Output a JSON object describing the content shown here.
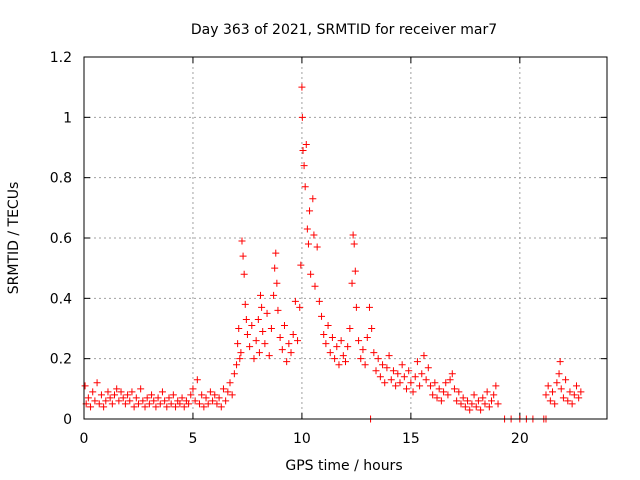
{
  "chart_data": {
    "type": "scatter",
    "title": "Day 363 of 2021, SRMTID for receiver mar7",
    "xlabel": "GPS time / hours",
    "ylabel": "SRMTID / TECUs",
    "xlim": [
      0,
      24
    ],
    "ylim": [
      0,
      1.2
    ],
    "xticks": [
      0,
      5,
      10,
      15,
      20
    ],
    "xtick_labels": [
      "0",
      "5",
      "10",
      "15",
      "20"
    ],
    "yticks": [
      0,
      0.2,
      0.4,
      0.6,
      0.8,
      1.0,
      1.2
    ],
    "ytick_labels": [
      "0",
      "0.2",
      "0.4",
      "0.6",
      "0.8",
      "1",
      "1.2"
    ],
    "grid": true,
    "marker": "+",
    "series": [
      {
        "name": "SRMTID",
        "color": "#ff0000",
        "points": [
          [
            0.05,
            0.11
          ],
          [
            0.1,
            0.05
          ],
          [
            0.2,
            0.07
          ],
          [
            0.3,
            0.04
          ],
          [
            0.4,
            0.09
          ],
          [
            0.5,
            0.06
          ],
          [
            0.6,
            0.12
          ],
          [
            0.7,
            0.05
          ],
          [
            0.8,
            0.08
          ],
          [
            0.9,
            0.04
          ],
          [
            1.0,
            0.06
          ],
          [
            1.1,
            0.09
          ],
          [
            1.2,
            0.07
          ],
          [
            1.3,
            0.05
          ],
          [
            1.4,
            0.08
          ],
          [
            1.5,
            0.1
          ],
          [
            1.6,
            0.06
          ],
          [
            1.7,
            0.09
          ],
          [
            1.8,
            0.07
          ],
          [
            1.9,
            0.05
          ],
          [
            2.0,
            0.08
          ],
          [
            2.1,
            0.06
          ],
          [
            2.2,
            0.09
          ],
          [
            2.3,
            0.04
          ],
          [
            2.4,
            0.07
          ],
          [
            2.5,
            0.05
          ],
          [
            2.6,
            0.1
          ],
          [
            2.7,
            0.06
          ],
          [
            2.8,
            0.04
          ],
          [
            2.9,
            0.07
          ],
          [
            3.0,
            0.05
          ],
          [
            3.1,
            0.08
          ],
          [
            3.2,
            0.06
          ],
          [
            3.3,
            0.04
          ],
          [
            3.4,
            0.07
          ],
          [
            3.5,
            0.05
          ],
          [
            3.6,
            0.09
          ],
          [
            3.7,
            0.06
          ],
          [
            3.8,
            0.04
          ],
          [
            3.9,
            0.07
          ],
          [
            4.0,
            0.05
          ],
          [
            4.1,
            0.08
          ],
          [
            4.2,
            0.04
          ],
          [
            4.3,
            0.06
          ],
          [
            4.4,
            0.05
          ],
          [
            4.5,
            0.07
          ],
          [
            4.6,
            0.04
          ],
          [
            4.7,
            0.06
          ],
          [
            4.8,
            0.05
          ],
          [
            4.9,
            0.08
          ],
          [
            5.0,
            0.1
          ],
          [
            5.1,
            0.06
          ],
          [
            5.2,
            0.13
          ],
          [
            5.3,
            0.05
          ],
          [
            5.4,
            0.08
          ],
          [
            5.5,
            0.04
          ],
          [
            5.6,
            0.07
          ],
          [
            5.7,
            0.05
          ],
          [
            5.8,
            0.09
          ],
          [
            5.9,
            0.06
          ],
          [
            6.0,
            0.08
          ],
          [
            6.1,
            0.05
          ],
          [
            6.2,
            0.07
          ],
          [
            6.3,
            0.04
          ],
          [
            6.4,
            0.1
          ],
          [
            6.5,
            0.06
          ],
          [
            6.6,
            0.09
          ],
          [
            6.7,
            0.12
          ],
          [
            6.8,
            0.08
          ],
          [
            6.9,
            0.15
          ],
          [
            7.0,
            0.18
          ],
          [
            7.05,
            0.25
          ],
          [
            7.1,
            0.3
          ],
          [
            7.15,
            0.2
          ],
          [
            7.2,
            0.22
          ],
          [
            7.25,
            0.59
          ],
          [
            7.3,
            0.54
          ],
          [
            7.35,
            0.48
          ],
          [
            7.4,
            0.38
          ],
          [
            7.45,
            0.33
          ],
          [
            7.5,
            0.28
          ],
          [
            7.6,
            0.24
          ],
          [
            7.7,
            0.31
          ],
          [
            7.8,
            0.2
          ],
          [
            7.9,
            0.26
          ],
          [
            8.0,
            0.33
          ],
          [
            8.05,
            0.22
          ],
          [
            8.1,
            0.41
          ],
          [
            8.15,
            0.37
          ],
          [
            8.2,
            0.29
          ],
          [
            8.3,
            0.25
          ],
          [
            8.4,
            0.35
          ],
          [
            8.5,
            0.21
          ],
          [
            8.6,
            0.3
          ],
          [
            8.7,
            0.41
          ],
          [
            8.75,
            0.5
          ],
          [
            8.8,
            0.55
          ],
          [
            8.85,
            0.45
          ],
          [
            8.9,
            0.36
          ],
          [
            9.0,
            0.27
          ],
          [
            9.1,
            0.23
          ],
          [
            9.2,
            0.31
          ],
          [
            9.3,
            0.19
          ],
          [
            9.4,
            0.25
          ],
          [
            9.5,
            0.22
          ],
          [
            9.6,
            0.28
          ],
          [
            9.7,
            0.39
          ],
          [
            9.8,
            0.26
          ],
          [
            9.9,
            0.37
          ],
          [
            9.95,
            0.51
          ],
          [
            10.0,
            1.1
          ],
          [
            10.02,
            1.0
          ],
          [
            10.05,
            0.89
          ],
          [
            10.1,
            0.84
          ],
          [
            10.15,
            0.77
          ],
          [
            10.2,
            0.91
          ],
          [
            10.25,
            0.63
          ],
          [
            10.3,
            0.58
          ],
          [
            10.35,
            0.69
          ],
          [
            10.4,
            0.48
          ],
          [
            10.5,
            0.73
          ],
          [
            10.55,
            0.61
          ],
          [
            10.6,
            0.44
          ],
          [
            10.7,
            0.57
          ],
          [
            10.8,
            0.39
          ],
          [
            10.9,
            0.34
          ],
          [
            11.0,
            0.28
          ],
          [
            11.1,
            0.25
          ],
          [
            11.2,
            0.31
          ],
          [
            11.3,
            0.22
          ],
          [
            11.4,
            0.27
          ],
          [
            11.5,
            0.2
          ],
          [
            11.6,
            0.24
          ],
          [
            11.7,
            0.18
          ],
          [
            11.8,
            0.26
          ],
          [
            11.9,
            0.21
          ],
          [
            12.0,
            0.19
          ],
          [
            12.1,
            0.24
          ],
          [
            12.2,
            0.3
          ],
          [
            12.3,
            0.45
          ],
          [
            12.35,
            0.61
          ],
          [
            12.4,
            0.58
          ],
          [
            12.45,
            0.49
          ],
          [
            12.5,
            0.37
          ],
          [
            12.6,
            0.26
          ],
          [
            12.7,
            0.2
          ],
          [
            12.8,
            0.23
          ],
          [
            12.9,
            0.18
          ],
          [
            13.0,
            0.27
          ],
          [
            13.1,
            0.37
          ],
          [
            13.15,
            0.0
          ],
          [
            13.2,
            0.3
          ],
          [
            13.3,
            0.22
          ],
          [
            13.4,
            0.16
          ],
          [
            13.5,
            0.2
          ],
          [
            13.6,
            0.14
          ],
          [
            13.7,
            0.18
          ],
          [
            13.8,
            0.12
          ],
          [
            13.9,
            0.17
          ],
          [
            14.0,
            0.21
          ],
          [
            14.1,
            0.13
          ],
          [
            14.2,
            0.16
          ],
          [
            14.3,
            0.11
          ],
          [
            14.4,
            0.15
          ],
          [
            14.5,
            0.12
          ],
          [
            14.6,
            0.18
          ],
          [
            14.7,
            0.14
          ],
          [
            14.8,
            0.1
          ],
          [
            14.9,
            0.16
          ],
          [
            15.0,
            0.12
          ],
          [
            15.1,
            0.09
          ],
          [
            15.2,
            0.14
          ],
          [
            15.3,
            0.19
          ],
          [
            15.4,
            0.11
          ],
          [
            15.5,
            0.15
          ],
          [
            15.6,
            0.21
          ],
          [
            15.7,
            0.13
          ],
          [
            15.8,
            0.17
          ],
          [
            15.9,
            0.11
          ],
          [
            16.0,
            0.08
          ],
          [
            16.1,
            0.12
          ],
          [
            16.2,
            0.07
          ],
          [
            16.3,
            0.1
          ],
          [
            16.4,
            0.06
          ],
          [
            16.5,
            0.09
          ],
          [
            16.6,
            0.12
          ],
          [
            16.7,
            0.08
          ],
          [
            16.8,
            0.13
          ],
          [
            16.9,
            0.15
          ],
          [
            17.0,
            0.1
          ],
          [
            17.1,
            0.06
          ],
          [
            17.2,
            0.09
          ],
          [
            17.3,
            0.05
          ],
          [
            17.4,
            0.07
          ],
          [
            17.5,
            0.04
          ],
          [
            17.6,
            0.06
          ],
          [
            17.7,
            0.03
          ],
          [
            17.8,
            0.05
          ],
          [
            17.9,
            0.08
          ],
          [
            18.0,
            0.04
          ],
          [
            18.1,
            0.06
          ],
          [
            18.2,
            0.03
          ],
          [
            18.3,
            0.07
          ],
          [
            18.4,
            0.05
          ],
          [
            18.5,
            0.09
          ],
          [
            18.6,
            0.04
          ],
          [
            18.7,
            0.06
          ],
          [
            18.8,
            0.08
          ],
          [
            18.9,
            0.11
          ],
          [
            19.0,
            0.05
          ],
          [
            19.3,
            0.0
          ],
          [
            19.6,
            0.0
          ],
          [
            20.0,
            0.0
          ],
          [
            20.3,
            0.0
          ],
          [
            20.6,
            0.0
          ],
          [
            21.1,
            0.0
          ],
          [
            21.2,
            0.0
          ],
          [
            21.2,
            0.08
          ],
          [
            21.3,
            0.11
          ],
          [
            21.4,
            0.06
          ],
          [
            21.5,
            0.09
          ],
          [
            21.6,
            0.05
          ],
          [
            21.7,
            0.12
          ],
          [
            21.8,
            0.15
          ],
          [
            21.85,
            0.19
          ],
          [
            21.9,
            0.1
          ],
          [
            22.0,
            0.07
          ],
          [
            22.1,
            0.13
          ],
          [
            22.2,
            0.06
          ],
          [
            22.3,
            0.09
          ],
          [
            22.4,
            0.05
          ],
          [
            22.5,
            0.08
          ],
          [
            22.6,
            0.11
          ],
          [
            22.7,
            0.07
          ],
          [
            22.8,
            0.09
          ]
        ]
      }
    ]
  }
}
